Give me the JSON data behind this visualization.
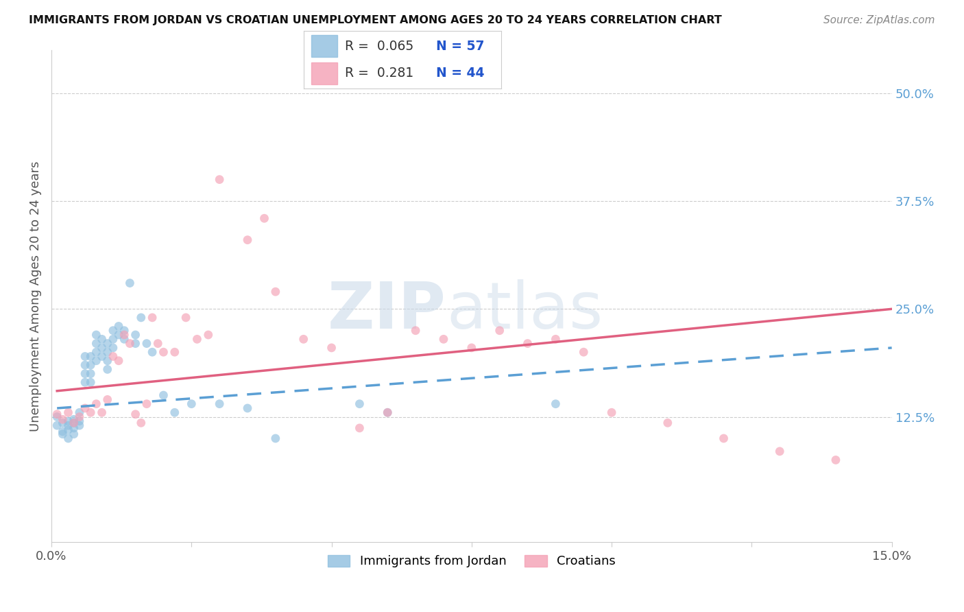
{
  "title": "IMMIGRANTS FROM JORDAN VS CROATIAN UNEMPLOYMENT AMONG AGES 20 TO 24 YEARS CORRELATION CHART",
  "source": "Source: ZipAtlas.com",
  "ylabel": "Unemployment Among Ages 20 to 24 years",
  "xlim": [
    0.0,
    0.15
  ],
  "ylim": [
    -0.02,
    0.55
  ],
  "xtick_positions": [
    0.0,
    0.025,
    0.05,
    0.075,
    0.1,
    0.125,
    0.15
  ],
  "xtick_labels": [
    "0.0%",
    "",
    "",
    "",
    "",
    "",
    "15.0%"
  ],
  "ytick_labels_right": [
    "12.5%",
    "25.0%",
    "37.5%",
    "50.0%"
  ],
  "yticks_right": [
    0.125,
    0.25,
    0.375,
    0.5
  ],
  "legend_r1": "R =  0.065",
  "legend_n1": "N = 57",
  "legend_r2": "R =  0.281",
  "legend_n2": "N = 44",
  "series1_color": "#8fbfdf",
  "series2_color": "#f4a0b5",
  "series1_line_color": "#5b9fd4",
  "series2_line_color": "#e06080",
  "watermark_zip": "ZIP",
  "watermark_atlas": "atlas",
  "background_color": "#ffffff",
  "scatter_alpha": 0.65,
  "scatter_size": 85,
  "jordan_x": [
    0.001,
    0.001,
    0.002,
    0.002,
    0.002,
    0.003,
    0.003,
    0.003,
    0.003,
    0.004,
    0.004,
    0.004,
    0.004,
    0.005,
    0.005,
    0.005,
    0.006,
    0.006,
    0.006,
    0.006,
    0.007,
    0.007,
    0.007,
    0.007,
    0.008,
    0.008,
    0.008,
    0.008,
    0.009,
    0.009,
    0.009,
    0.01,
    0.01,
    0.01,
    0.01,
    0.011,
    0.011,
    0.011,
    0.012,
    0.012,
    0.013,
    0.013,
    0.014,
    0.015,
    0.015,
    0.016,
    0.017,
    0.018,
    0.02,
    0.022,
    0.025,
    0.03,
    0.035,
    0.04,
    0.055,
    0.06,
    0.09
  ],
  "jordan_y": [
    0.125,
    0.115,
    0.118,
    0.108,
    0.105,
    0.12,
    0.115,
    0.11,
    0.1,
    0.122,
    0.118,
    0.112,
    0.105,
    0.13,
    0.12,
    0.115,
    0.195,
    0.185,
    0.175,
    0.165,
    0.195,
    0.185,
    0.175,
    0.165,
    0.22,
    0.21,
    0.2,
    0.19,
    0.215,
    0.205,
    0.195,
    0.21,
    0.2,
    0.19,
    0.18,
    0.225,
    0.215,
    0.205,
    0.23,
    0.22,
    0.225,
    0.215,
    0.28,
    0.22,
    0.21,
    0.24,
    0.21,
    0.2,
    0.15,
    0.13,
    0.14,
    0.14,
    0.135,
    0.1,
    0.14,
    0.13,
    0.14
  ],
  "croatian_x": [
    0.001,
    0.002,
    0.003,
    0.004,
    0.005,
    0.006,
    0.007,
    0.008,
    0.009,
    0.01,
    0.011,
    0.012,
    0.013,
    0.014,
    0.015,
    0.016,
    0.017,
    0.018,
    0.019,
    0.02,
    0.022,
    0.024,
    0.026,
    0.028,
    0.03,
    0.035,
    0.038,
    0.04,
    0.045,
    0.05,
    0.055,
    0.06,
    0.065,
    0.07,
    0.075,
    0.08,
    0.085,
    0.09,
    0.095,
    0.1,
    0.11,
    0.12,
    0.13,
    0.14
  ],
  "croatian_y": [
    0.128,
    0.122,
    0.13,
    0.118,
    0.125,
    0.135,
    0.13,
    0.14,
    0.13,
    0.145,
    0.195,
    0.19,
    0.22,
    0.21,
    0.128,
    0.118,
    0.14,
    0.24,
    0.21,
    0.2,
    0.2,
    0.24,
    0.215,
    0.22,
    0.4,
    0.33,
    0.355,
    0.27,
    0.215,
    0.205,
    0.112,
    0.13,
    0.225,
    0.215,
    0.205,
    0.225,
    0.21,
    0.215,
    0.2,
    0.13,
    0.118,
    0.1,
    0.085,
    0.075
  ],
  "jordan_line_x": [
    0.001,
    0.15
  ],
  "jordan_line_y": [
    0.135,
    0.205
  ],
  "croatian_line_x": [
    0.001,
    0.15
  ],
  "croatian_line_y": [
    0.155,
    0.25
  ]
}
